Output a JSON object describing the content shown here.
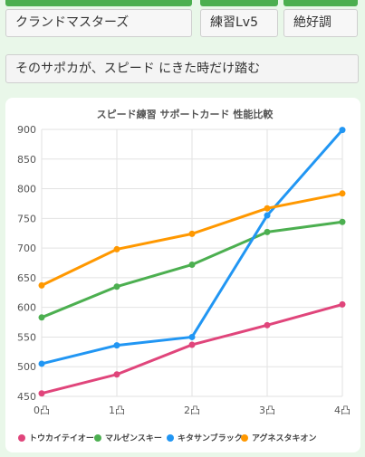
{
  "controls": {
    "character": "クランドマスターズ",
    "practice_level": "練習Lv5",
    "condition": "絶好調"
  },
  "hint": "そのサポカが、スピード にきた時だけ踏む",
  "colors": {
    "accent": "#4caf50",
    "toukai": "#e0457b",
    "maruzen": "#4caf50",
    "kitasan": "#2196f3",
    "agnes": "#ff9800"
  },
  "chart_data": {
    "type": "line",
    "title": "スピード練習 サポートカード 性能比較",
    "categories": [
      "0凸",
      "1凸",
      "2凸",
      "3凸",
      "4凸"
    ],
    "ylim": [
      450,
      900
    ],
    "yticks": [
      450,
      500,
      550,
      600,
      650,
      700,
      750,
      800,
      850,
      900
    ],
    "grid": true,
    "legend_position": "bottom",
    "series": [
      {
        "name": "トウカイテイオー",
        "color": "#e0457b",
        "values": [
          455,
          487,
          537,
          570,
          605
        ]
      },
      {
        "name": "マルゼンスキー",
        "color": "#4caf50",
        "values": [
          583,
          635,
          672,
          727,
          744
        ]
      },
      {
        "name": "キタサンブラック",
        "color": "#2196f3",
        "values": [
          505,
          536,
          550,
          755,
          899
        ]
      },
      {
        "name": "アグネスタキオン",
        "color": "#ff9800",
        "values": [
          637,
          698,
          724,
          767,
          792
        ]
      }
    ]
  }
}
